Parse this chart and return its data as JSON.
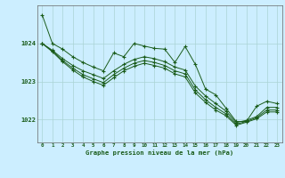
{
  "title": "Graphe pression niveau de la mer (hPa)",
  "background_color": "#cceeff",
  "grid_color": "#aad4d4",
  "line_color": "#1a5c1a",
  "x_labels": [
    "0",
    "1",
    "2",
    "3",
    "4",
    "5",
    "6",
    "7",
    "8",
    "9",
    "10",
    "11",
    "12",
    "13",
    "14",
    "15",
    "16",
    "17",
    "18",
    "19",
    "20",
    "21",
    "22",
    "23"
  ],
  "yticks": [
    1022,
    1023,
    1024
  ],
  "ylim": [
    1021.4,
    1025.0
  ],
  "series": [
    [
      1024.75,
      1024.0,
      1023.85,
      1023.65,
      1023.5,
      1023.38,
      1023.28,
      1023.75,
      1023.65,
      1024.0,
      1023.93,
      1023.87,
      1023.85,
      1023.5,
      1023.92,
      1023.45,
      1022.8,
      1022.65,
      1022.3,
      1021.95,
      1021.95,
      1022.35,
      1022.48,
      1022.42
    ],
    [
      1024.0,
      1023.82,
      1023.6,
      1023.42,
      1023.28,
      1023.18,
      1023.08,
      1023.28,
      1023.45,
      1023.58,
      1023.65,
      1023.6,
      1023.52,
      1023.38,
      1023.3,
      1022.88,
      1022.62,
      1022.42,
      1022.22,
      1021.92,
      1021.98,
      1022.08,
      1022.32,
      1022.32
    ],
    [
      1024.0,
      1023.8,
      1023.55,
      1023.35,
      1023.18,
      1023.07,
      1022.97,
      1023.18,
      1023.35,
      1023.48,
      1023.55,
      1023.5,
      1023.42,
      1023.28,
      1023.2,
      1022.78,
      1022.52,
      1022.32,
      1022.15,
      1021.88,
      1021.95,
      1022.05,
      1022.25,
      1022.25
    ],
    [
      1024.0,
      1023.78,
      1023.52,
      1023.3,
      1023.12,
      1023.0,
      1022.9,
      1023.1,
      1023.28,
      1023.4,
      1023.48,
      1023.42,
      1023.35,
      1023.2,
      1023.12,
      1022.7,
      1022.45,
      1022.25,
      1022.1,
      1021.85,
      1021.93,
      1022.02,
      1022.2,
      1022.2
    ]
  ]
}
